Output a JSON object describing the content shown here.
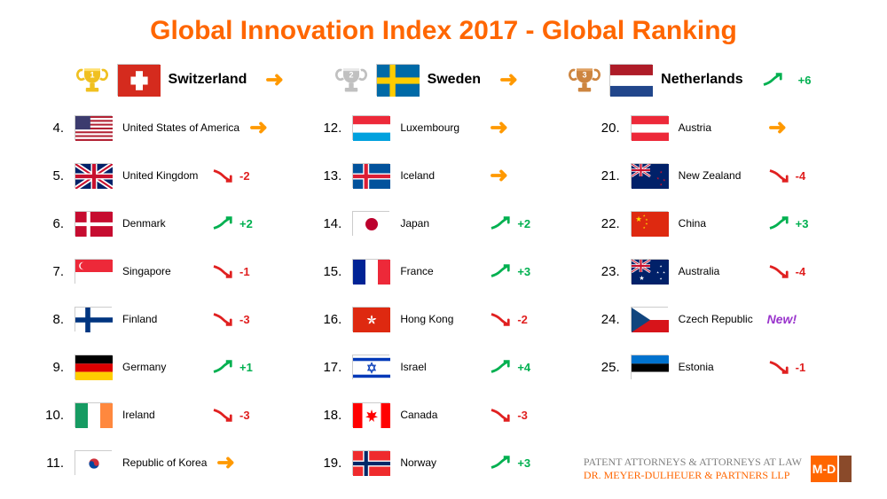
{
  "title": "Global Innovation Index 2017 - Global Ranking",
  "title_color": "#ff6600",
  "colors": {
    "up": "#00b050",
    "down": "#e02020",
    "flat": "#ff9900",
    "new": "#9933cc",
    "footer_gray": "#808080",
    "footer_orange": "#ff6600"
  },
  "trophies": [
    {
      "rank": 1,
      "color": "#f0c020",
      "shine": "#ffe070"
    },
    {
      "rank": 2,
      "color": "#c0c0c0",
      "shine": "#e8e8e8"
    },
    {
      "rank": 3,
      "color": "#cd8540",
      "shine": "#e0a060"
    }
  ],
  "top3": [
    {
      "country": "Switzerland",
      "flag": "ch",
      "trend": "flat",
      "delta": ""
    },
    {
      "country": "Sweden",
      "flag": "se",
      "trend": "flat",
      "delta": ""
    },
    {
      "country": "Netherlands",
      "flag": "nl",
      "trend": "up",
      "delta": "+6"
    }
  ],
  "countries": [
    {
      "rank": "4.",
      "name": "United States of America",
      "flag": "us",
      "trend": "flat",
      "delta": ""
    },
    {
      "rank": "5.",
      "name": "United Kingdom",
      "flag": "gb",
      "trend": "down",
      "delta": "-2"
    },
    {
      "rank": "6.",
      "name": "Denmark",
      "flag": "dk",
      "trend": "up",
      "delta": "+2"
    },
    {
      "rank": "7.",
      "name": "Singapore",
      "flag": "sg",
      "trend": "down",
      "delta": "-1"
    },
    {
      "rank": "8.",
      "name": "Finland",
      "flag": "fi",
      "trend": "down",
      "delta": "-3"
    },
    {
      "rank": "9.",
      "name": "Germany",
      "flag": "de",
      "trend": "up",
      "delta": "+1"
    },
    {
      "rank": "10.",
      "name": "Ireland",
      "flag": "ie",
      "trend": "down",
      "delta": "-3"
    },
    {
      "rank": "11.",
      "name": "Republic of Korea",
      "flag": "kr",
      "trend": "flat",
      "delta": ""
    },
    {
      "rank": "12.",
      "name": "Luxembourg",
      "flag": "lu",
      "trend": "flat",
      "delta": ""
    },
    {
      "rank": "13.",
      "name": "Iceland",
      "flag": "is",
      "trend": "flat",
      "delta": ""
    },
    {
      "rank": "14.",
      "name": "Japan",
      "flag": "jp",
      "trend": "up",
      "delta": "+2"
    },
    {
      "rank": "15.",
      "name": "France",
      "flag": "fr",
      "trend": "up",
      "delta": "+3"
    },
    {
      "rank": "16.",
      "name": "Hong Kong",
      "flag": "hk",
      "trend": "down",
      "delta": "-2"
    },
    {
      "rank": "17.",
      "name": "Israel",
      "flag": "il",
      "trend": "up",
      "delta": "+4"
    },
    {
      "rank": "18.",
      "name": "Canada",
      "flag": "ca",
      "trend": "down",
      "delta": "-3"
    },
    {
      "rank": "19.",
      "name": "Norway",
      "flag": "no",
      "trend": "up",
      "delta": "+3"
    },
    {
      "rank": "20.",
      "name": "Austria",
      "flag": "at",
      "trend": "flat",
      "delta": ""
    },
    {
      "rank": "21.",
      "name": "New Zealand",
      "flag": "nz",
      "trend": "down",
      "delta": "-4"
    },
    {
      "rank": "22.",
      "name": "China",
      "flag": "cn",
      "trend": "up",
      "delta": "+3"
    },
    {
      "rank": "23.",
      "name": "Australia",
      "flag": "au",
      "trend": "down",
      "delta": "-4"
    },
    {
      "rank": "24.",
      "name": "Czech Republic",
      "flag": "cz",
      "trend": "new",
      "delta": "New!"
    },
    {
      "rank": "25.",
      "name": "Estonia",
      "flag": "ee",
      "trend": "down",
      "delta": "-1"
    }
  ],
  "col_split": [
    0,
    8,
    16,
    22
  ],
  "footer": {
    "line1": "PATENT ATTORNEYS & ATTORNEYS AT LAW",
    "line2": "DR. MEYER-DULHEUER & PARTNERS LLP",
    "logo_text": "M-D",
    "logo_bg1": "#ff6600",
    "logo_bg2": "#8a4a2a"
  }
}
